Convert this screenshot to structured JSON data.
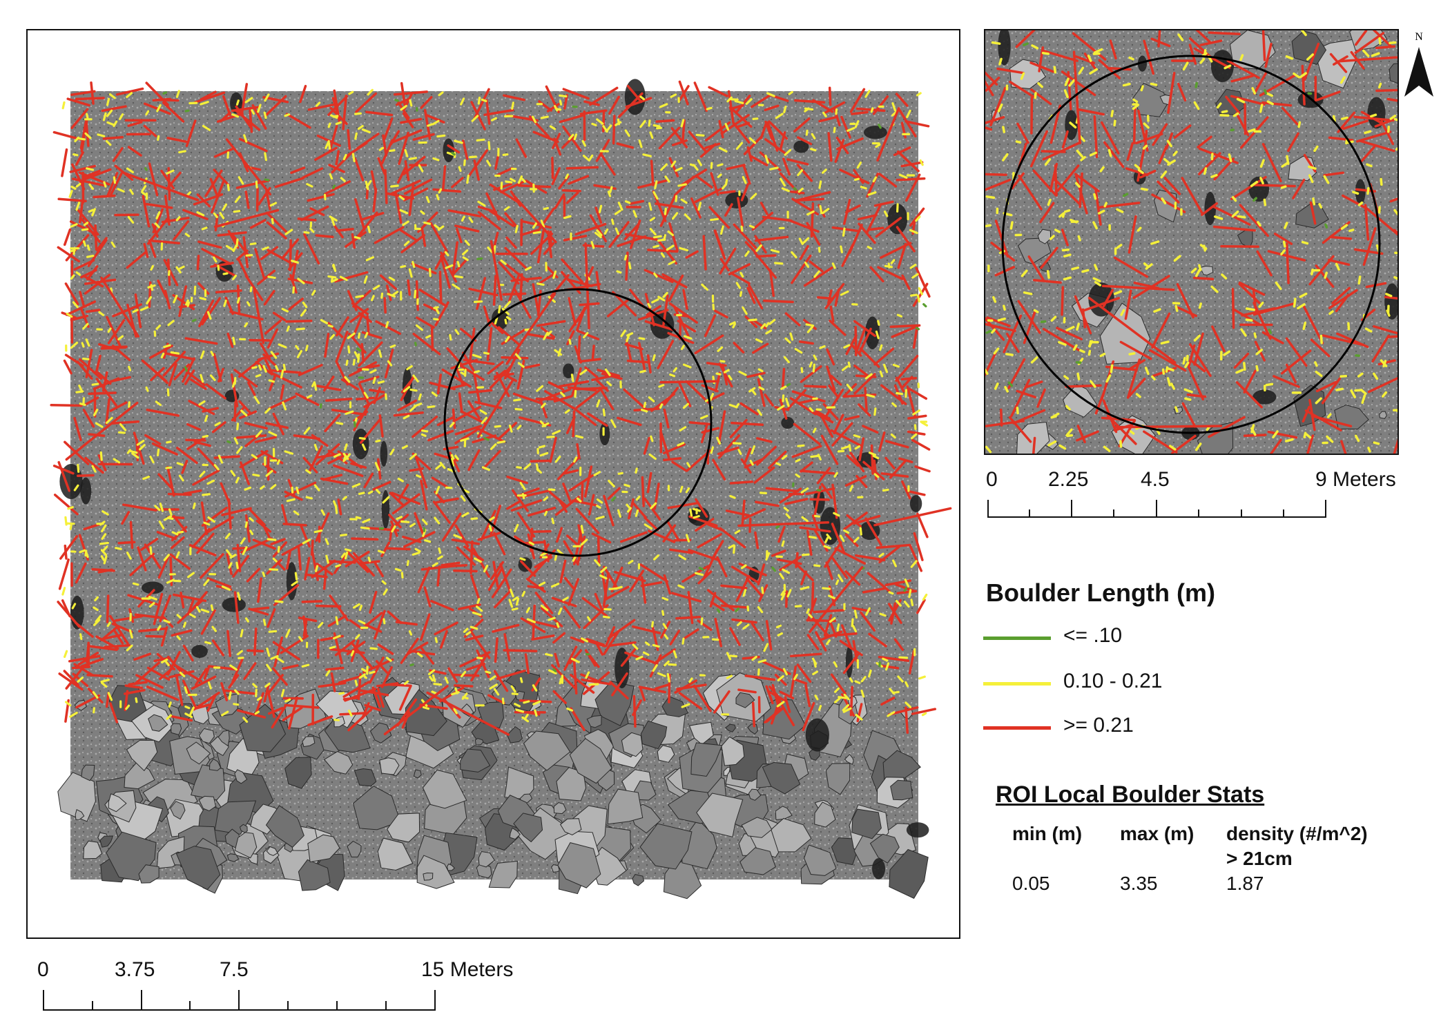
{
  "main_scale": {
    "ticks": [
      "0",
      "3.75",
      "7.5",
      "15 Meters"
    ]
  },
  "inset_scale": {
    "ticks": [
      "0",
      "2.25",
      "4.5",
      "9 Meters"
    ]
  },
  "north_arrow": {
    "label": "N",
    "icon": "north-arrow-icon"
  },
  "legend": {
    "title": "Boulder Length (m)",
    "items": [
      {
        "label": "<= .10",
        "color": "#5a9e2f"
      },
      {
        "label": "0.10 - 0.21",
        "color": "#f5f03a"
      },
      {
        "label": ">= 0.21",
        "color": "#e03224"
      }
    ]
  },
  "stats": {
    "title": "ROI Local Boulder Stats",
    "headers": [
      "min (m)",
      "max (m)",
      "density (#/m^2)\n> 21cm"
    ],
    "values": [
      "0.05",
      "3.35",
      "1.87"
    ]
  },
  "colors": {
    "background": "#ffffff",
    "frame": "#111111",
    "roi_circle": "#000000",
    "terrain": "#7d7d7d"
  }
}
